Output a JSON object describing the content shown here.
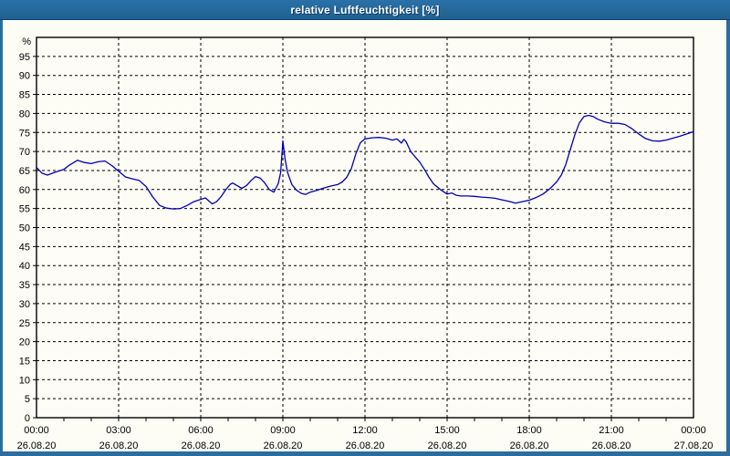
{
  "window": {
    "title": "relative Luftfeuchtigkeit [%]"
  },
  "colors": {
    "titlebar": "#26699e",
    "frame_border": "#2b6d9f",
    "plot_background": "#fdfdf6",
    "grid": "#000000",
    "axis": "#000000",
    "line": "#0000b2",
    "title_text": "#ffffff"
  },
  "chart_data": {
    "type": "line",
    "title": "relative Luftfeuchtigkeit [%]",
    "xlabel": "",
    "ylabel": "%",
    "ylim": [
      0,
      100
    ],
    "yticks": [
      0,
      5,
      10,
      15,
      20,
      25,
      30,
      35,
      40,
      45,
      50,
      55,
      60,
      65,
      70,
      75,
      80,
      85,
      90,
      95
    ],
    "grid": "dashed",
    "legend": "none",
    "x_hours_span": 24,
    "x_minor_tick_hours": 1,
    "xticks": [
      {
        "hour": 0,
        "time": "00:00",
        "date": "26.08.20"
      },
      {
        "hour": 3,
        "time": "03:00",
        "date": "26.08.20"
      },
      {
        "hour": 6,
        "time": "06:00",
        "date": "26.08.20"
      },
      {
        "hour": 9,
        "time": "09:00",
        "date": "26.08.20"
      },
      {
        "hour": 12,
        "time": "12:00",
        "date": "26.08.20"
      },
      {
        "hour": 15,
        "time": "15:00",
        "date": "26.08.20"
      },
      {
        "hour": 18,
        "time": "18:00",
        "date": "26.08.20"
      },
      {
        "hour": 21,
        "time": "21:00",
        "date": "26.08.20"
      },
      {
        "hour": 24,
        "time": "00:00",
        "date": "27.08.20"
      }
    ],
    "series": [
      {
        "name": "relative Luftfeuchtigkeit [%]",
        "color": "#0000b2",
        "points": [
          [
            0,
            65.8
          ],
          [
            0.2,
            64.3
          ],
          [
            0.4,
            63.8
          ],
          [
            0.7,
            64.6
          ],
          [
            1,
            65.3
          ],
          [
            1.2,
            66.4
          ],
          [
            1.5,
            67.7
          ],
          [
            1.75,
            67.1
          ],
          [
            2,
            66.8
          ],
          [
            2.25,
            67.3
          ],
          [
            2.5,
            67.5
          ],
          [
            2.75,
            66.3
          ],
          [
            3,
            64.8
          ],
          [
            3.25,
            63.3
          ],
          [
            3.5,
            62.8
          ],
          [
            3.75,
            62.4
          ],
          [
            4,
            60.8
          ],
          [
            4.25,
            58
          ],
          [
            4.5,
            55.8
          ],
          [
            4.75,
            55.1
          ],
          [
            5,
            54.9
          ],
          [
            5.25,
            55
          ],
          [
            5.5,
            55.8
          ],
          [
            5.75,
            56.8
          ],
          [
            6,
            57.4
          ],
          [
            6.17,
            57.8
          ],
          [
            6.42,
            56.2
          ],
          [
            6.58,
            56.8
          ],
          [
            6.75,
            58.2
          ],
          [
            6.92,
            60
          ],
          [
            7.08,
            61.4
          ],
          [
            7.17,
            61.7
          ],
          [
            7.33,
            61
          ],
          [
            7.5,
            60.3
          ],
          [
            7.67,
            61
          ],
          [
            7.83,
            62.3
          ],
          [
            8,
            63.4
          ],
          [
            8.17,
            63
          ],
          [
            8.33,
            61.8
          ],
          [
            8.5,
            60
          ],
          [
            8.67,
            59.3
          ],
          [
            8.83,
            61.5
          ],
          [
            8.92,
            64.5
          ],
          [
            9,
            72.8
          ],
          [
            9.08,
            68
          ],
          [
            9.17,
            64.5
          ],
          [
            9.33,
            61.3
          ],
          [
            9.5,
            59.8
          ],
          [
            9.67,
            59
          ],
          [
            9.83,
            58.7
          ],
          [
            10,
            59.3
          ],
          [
            10.25,
            59.8
          ],
          [
            10.5,
            60.4
          ],
          [
            10.75,
            60.9
          ],
          [
            11,
            61.3
          ],
          [
            11.17,
            62
          ],
          [
            11.33,
            63.2
          ],
          [
            11.5,
            65.5
          ],
          [
            11.67,
            69.5
          ],
          [
            11.83,
            72.3
          ],
          [
            12,
            73.3
          ],
          [
            12.25,
            73.6
          ],
          [
            12.5,
            73.7
          ],
          [
            12.75,
            73.5
          ],
          [
            13,
            73
          ],
          [
            13.17,
            73.3
          ],
          [
            13.33,
            72.2
          ],
          [
            13.42,
            73.2
          ],
          [
            13.5,
            72.6
          ],
          [
            13.67,
            70
          ],
          [
            13.83,
            68.6
          ],
          [
            14,
            67.2
          ],
          [
            14.17,
            65.3
          ],
          [
            14.33,
            63.3
          ],
          [
            14.5,
            61.5
          ],
          [
            14.75,
            60
          ],
          [
            15,
            58.8
          ],
          [
            15.17,
            59.1
          ],
          [
            15.33,
            58.5
          ],
          [
            15.5,
            58.3
          ],
          [
            15.75,
            58.3
          ],
          [
            16,
            58.2
          ],
          [
            16.25,
            58
          ],
          [
            16.5,
            57.9
          ],
          [
            16.75,
            57.7
          ],
          [
            17,
            57.3
          ],
          [
            17.25,
            56.9
          ],
          [
            17.5,
            56.4
          ],
          [
            17.75,
            56.8
          ],
          [
            18,
            57.2
          ],
          [
            18.25,
            57.9
          ],
          [
            18.5,
            58.8
          ],
          [
            18.75,
            60.2
          ],
          [
            19,
            62
          ],
          [
            19.17,
            63.8
          ],
          [
            19.33,
            66.5
          ],
          [
            19.5,
            70.5
          ],
          [
            19.67,
            74.5
          ],
          [
            19.83,
            77.5
          ],
          [
            20,
            79.2
          ],
          [
            20.17,
            79.5
          ],
          [
            20.33,
            79.2
          ],
          [
            20.5,
            78.5
          ],
          [
            20.75,
            77.8
          ],
          [
            21,
            77.4
          ],
          [
            21.25,
            77.4
          ],
          [
            21.5,
            77.1
          ],
          [
            21.75,
            76
          ],
          [
            22,
            74.6
          ],
          [
            22.25,
            73.4
          ],
          [
            22.5,
            72.8
          ],
          [
            22.75,
            72.7
          ],
          [
            23,
            73
          ],
          [
            23.25,
            73.5
          ],
          [
            23.5,
            74
          ],
          [
            23.75,
            74.6
          ],
          [
            24,
            75.2
          ]
        ]
      }
    ]
  }
}
